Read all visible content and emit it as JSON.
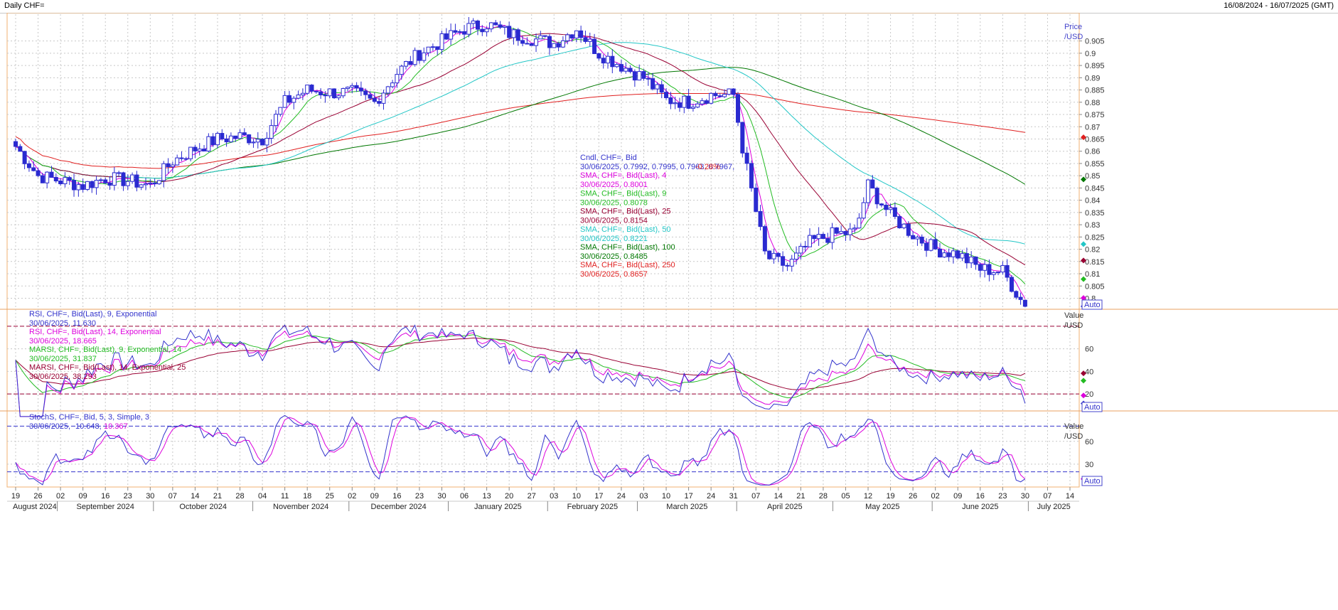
{
  "header": {
    "title": "Daily CHF=",
    "range": "16/08/2024 - 16/07/2025 (GMT)"
  },
  "axis_buttons": {
    "auto": "Auto"
  },
  "price_panel": {
    "unit_label": [
      "Price",
      "/USD"
    ],
    "legend": [
      {
        "label": "Cndl, CHF=, Bid",
        "value": "30/06/2025, 0.7992, 0.7995, 0.7963, 0.7967,",
        "change": "-0.28%",
        "color": "#3333cc",
        "change_color": "#e02020"
      },
      {
        "label": "SMA, CHF=, Bid(Last), 4",
        "value": "30/06/2025, 0.8001",
        "color": "#dd00dd"
      },
      {
        "label": "SMA, CHF=, Bid(Last), 9",
        "value": "30/06/2025, 0.8078",
        "color": "#22bb22"
      },
      {
        "label": "SMA, CHF=, Bid(Last), 25",
        "value": "30/06/2025, 0.8154",
        "color": "#990033"
      },
      {
        "label": "SMA, CHF=, Bid(Last), 50",
        "value": "30/06/2025, 0.8221",
        "color": "#22c6c6"
      },
      {
        "label": "SMA, CHF=, Bid(Last), 100",
        "value": "30/06/2025, 0.8485",
        "color": "#007700"
      },
      {
        "label": "SMA, CHF=, Bid(Last), 250",
        "value": "30/06/2025, 0.8657",
        "color": "#e02020"
      }
    ]
  },
  "rsi_panel": {
    "unit_label": [
      "Value",
      "/USD"
    ],
    "legend": [
      {
        "label": "RSI, CHF=, Bid(Last), 9, Exponential",
        "value": "30/06/2025, 11.630",
        "color": "#3333cc"
      },
      {
        "label": "RSI, CHF=, Bid(Last), 14, Exponential",
        "value": "30/06/2025, 18.665",
        "color": "#dd00dd"
      },
      {
        "label": "MARSI, CHF=, Bid(Last), 9, Exponential, 14",
        "value": "30/06/2025, 31.837",
        "color": "#22bb22"
      },
      {
        "label": "MARSI, CHF=, Bid(Last), 14, Exponential, 25",
        "value": "30/06/2025, 38.293",
        "color": "#990033"
      }
    ]
  },
  "stoch_panel": {
    "unit_label": [
      "Value",
      "/USD"
    ],
    "legend_label": "StochS, CHF=, Bid, 5, 3, Simple, 3",
    "legend_date": "30/06/2025,",
    "legend_k": "10.648,",
    "legend_d": "10.367",
    "color_k": "#3333cc",
    "color_d": "#dd00dd"
  },
  "chart_data": {
    "type": "candlestick",
    "instrument": "CHF=",
    "panels": [
      {
        "name": "price",
        "yticks": [
          0.8,
          0.805,
          0.81,
          0.815,
          0.82,
          0.825,
          0.83,
          0.835,
          0.84,
          0.845,
          0.85,
          0.855,
          0.86,
          0.865,
          0.87,
          0.875,
          0.88,
          0.885,
          0.89,
          0.895,
          0.9,
          0.905
        ],
        "ylim": [
          0.7955,
          0.9165
        ],
        "last_candle": {
          "date": "30/06/2025",
          "open": 0.7992,
          "high": 0.7995,
          "low": 0.7963,
          "close": 0.7967,
          "change_pct": -0.28
        },
        "close_path": [
          [
            "2024-08-19",
            0.862
          ],
          [
            "2024-08-26",
            0.85
          ],
          [
            "2024-09-02",
            0.848
          ],
          [
            "2024-09-09",
            0.846
          ],
          [
            "2024-09-16",
            0.849
          ],
          [
            "2024-09-23",
            0.848
          ],
          [
            "2024-09-30",
            0.846
          ],
          [
            "2024-10-07",
            0.856
          ],
          [
            "2024-10-14",
            0.861
          ],
          [
            "2024-10-21",
            0.865
          ],
          [
            "2024-10-28",
            0.866
          ],
          [
            "2024-11-04",
            0.865
          ],
          [
            "2024-11-11",
            0.88
          ],
          [
            "2024-11-18",
            0.885
          ],
          [
            "2024-11-25",
            0.884
          ],
          [
            "2024-12-02",
            0.884
          ],
          [
            "2024-12-09",
            0.88
          ],
          [
            "2024-12-16",
            0.892
          ],
          [
            "2024-12-23",
            0.9
          ],
          [
            "2024-12-30",
            0.905
          ],
          [
            "2025-01-06",
            0.91
          ],
          [
            "2025-01-13",
            0.912
          ],
          [
            "2025-01-20",
            0.908
          ],
          [
            "2025-01-27",
            0.906
          ],
          [
            "2025-02-03",
            0.904
          ],
          [
            "2025-02-10",
            0.91
          ],
          [
            "2025-02-17",
            0.9
          ],
          [
            "2025-02-24",
            0.895
          ],
          [
            "2025-03-03",
            0.89
          ],
          [
            "2025-03-10",
            0.881
          ],
          [
            "2025-03-17",
            0.88
          ],
          [
            "2025-03-24",
            0.883
          ],
          [
            "2025-03-31",
            0.883
          ],
          [
            "2025-04-03",
            0.86
          ],
          [
            "2025-04-10",
            0.817
          ],
          [
            "2025-04-17",
            0.813
          ],
          [
            "2025-04-24",
            0.823
          ],
          [
            "2025-05-01",
            0.826
          ],
          [
            "2025-05-08",
            0.827
          ],
          [
            "2025-05-12",
            0.846
          ],
          [
            "2025-05-19",
            0.834
          ],
          [
            "2025-05-26",
            0.826
          ],
          [
            "2025-06-02",
            0.82
          ],
          [
            "2025-06-09",
            0.818
          ],
          [
            "2025-06-16",
            0.812
          ],
          [
            "2025-06-23",
            0.811
          ],
          [
            "2025-06-30",
            0.7967
          ]
        ],
        "sma": [
          {
            "period": 4,
            "last": 0.8001
          },
          {
            "period": 9,
            "last": 0.8078
          },
          {
            "period": 25,
            "last": 0.8154
          },
          {
            "period": 50,
            "last": 0.8221
          },
          {
            "period": 100,
            "last": 0.8485
          },
          {
            "period": 250,
            "last": 0.8657
          }
        ]
      },
      {
        "name": "rsi",
        "yticks": [
          20,
          40,
          60
        ],
        "ylim": [
          5,
          95
        ],
        "reference_lines": [
          20,
          80
        ],
        "series": [
          {
            "name": "RSI 9 Exponential",
            "last": 11.63
          },
          {
            "name": "RSI 14 Exponential",
            "last": 18.665
          },
          {
            "name": "MARSI 9 Exponential 14",
            "last": 31.837
          },
          {
            "name": "MARSI 14 Exponential 25",
            "last": 38.293
          }
        ]
      },
      {
        "name": "stochastic",
        "yticks": [
          30,
          60
        ],
        "ylim": [
          0,
          100
        ],
        "reference_lines": [
          20,
          80
        ],
        "series": [
          {
            "name": "%K",
            "last": 10.648
          },
          {
            "name": "%D",
            "last": 10.367
          }
        ]
      }
    ],
    "x_day_ticks": [
      "19",
      "26",
      "02",
      "09",
      "16",
      "23",
      "30",
      "07",
      "14",
      "21",
      "28",
      "04",
      "11",
      "18",
      "25",
      "02",
      "09",
      "16",
      "23",
      "30",
      "06",
      "13",
      "20",
      "27",
      "03",
      "10",
      "17",
      "24",
      "03",
      "10",
      "17",
      "24",
      "31",
      "07",
      "14",
      "21",
      "28",
      "05",
      "12",
      "19",
      "26",
      "02",
      "09",
      "16",
      "23",
      "30",
      "07",
      "14"
    ],
    "x_months": [
      "August 2024",
      "September 2024",
      "October 2024",
      "November 2024",
      "December 2024",
      "January 2025",
      "February 2025",
      "March 2025",
      "April 2025",
      "May 2025",
      "June 2025",
      "July 2025"
    ]
  }
}
